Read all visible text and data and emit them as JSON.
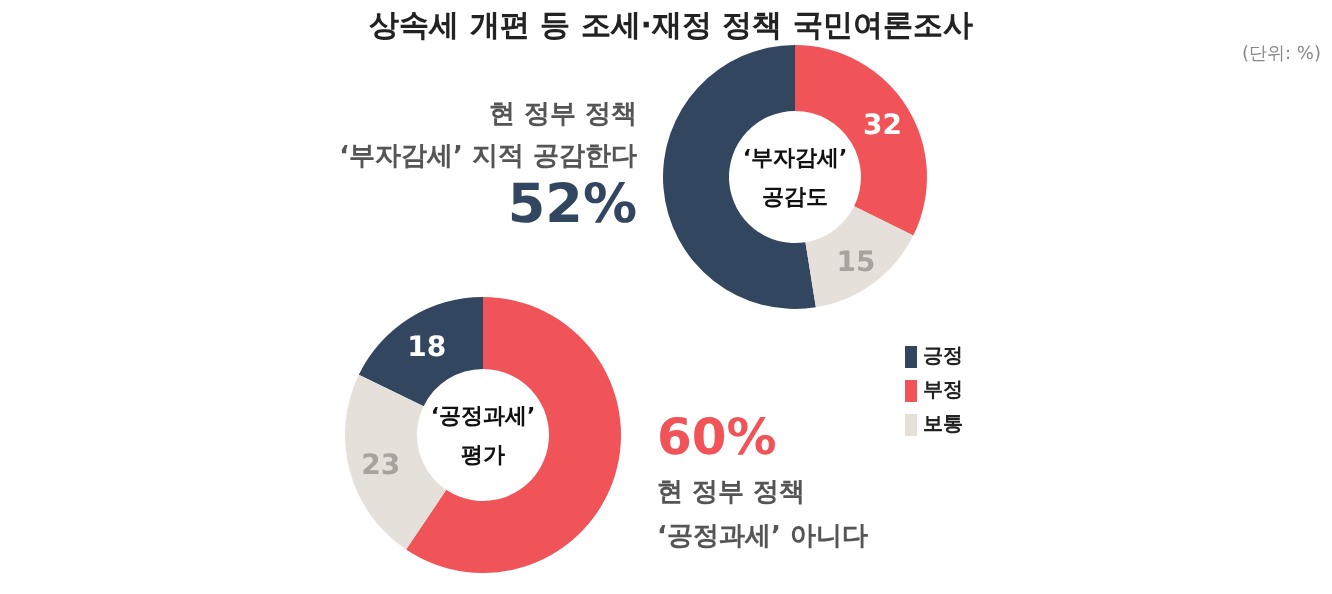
{
  "chart_data": [
    {
      "type": "donut",
      "title": "‘부자감세’\n공감도",
      "categories": [
        "긍정",
        "부정",
        "보통"
      ],
      "values": [
        52,
        32,
        15
      ],
      "colors": [
        "#32475f",
        "#f05459",
        "#e6e0db"
      ],
      "value_labels": [
        null,
        "32",
        "15"
      ],
      "legend": "bottom right",
      "annotations": [
        "상속세 개편 등 조세·재정 정책 국민여론조사",
        "(단위: %)",
        "현 정부 정책",
        "‘부자감세’ 지적 공감한다",
        "52%"
      ]
    },
    {
      "type": "donut",
      "title": "‘공정과세’\n평가",
      "categories": [
        null,
        null,
        null
      ],
      "values": [
        18,
        60,
        23
      ],
      "colors": [
        "#32475f",
        "#f05459",
        "#e6e0db"
      ],
      "value_labels": [
        "18",
        null,
        "23"
      ],
      "annotations": [
        "60%",
        "현 정부 정책",
        "‘공정과세’ 아니다"
      ]
    }
  ]
}
